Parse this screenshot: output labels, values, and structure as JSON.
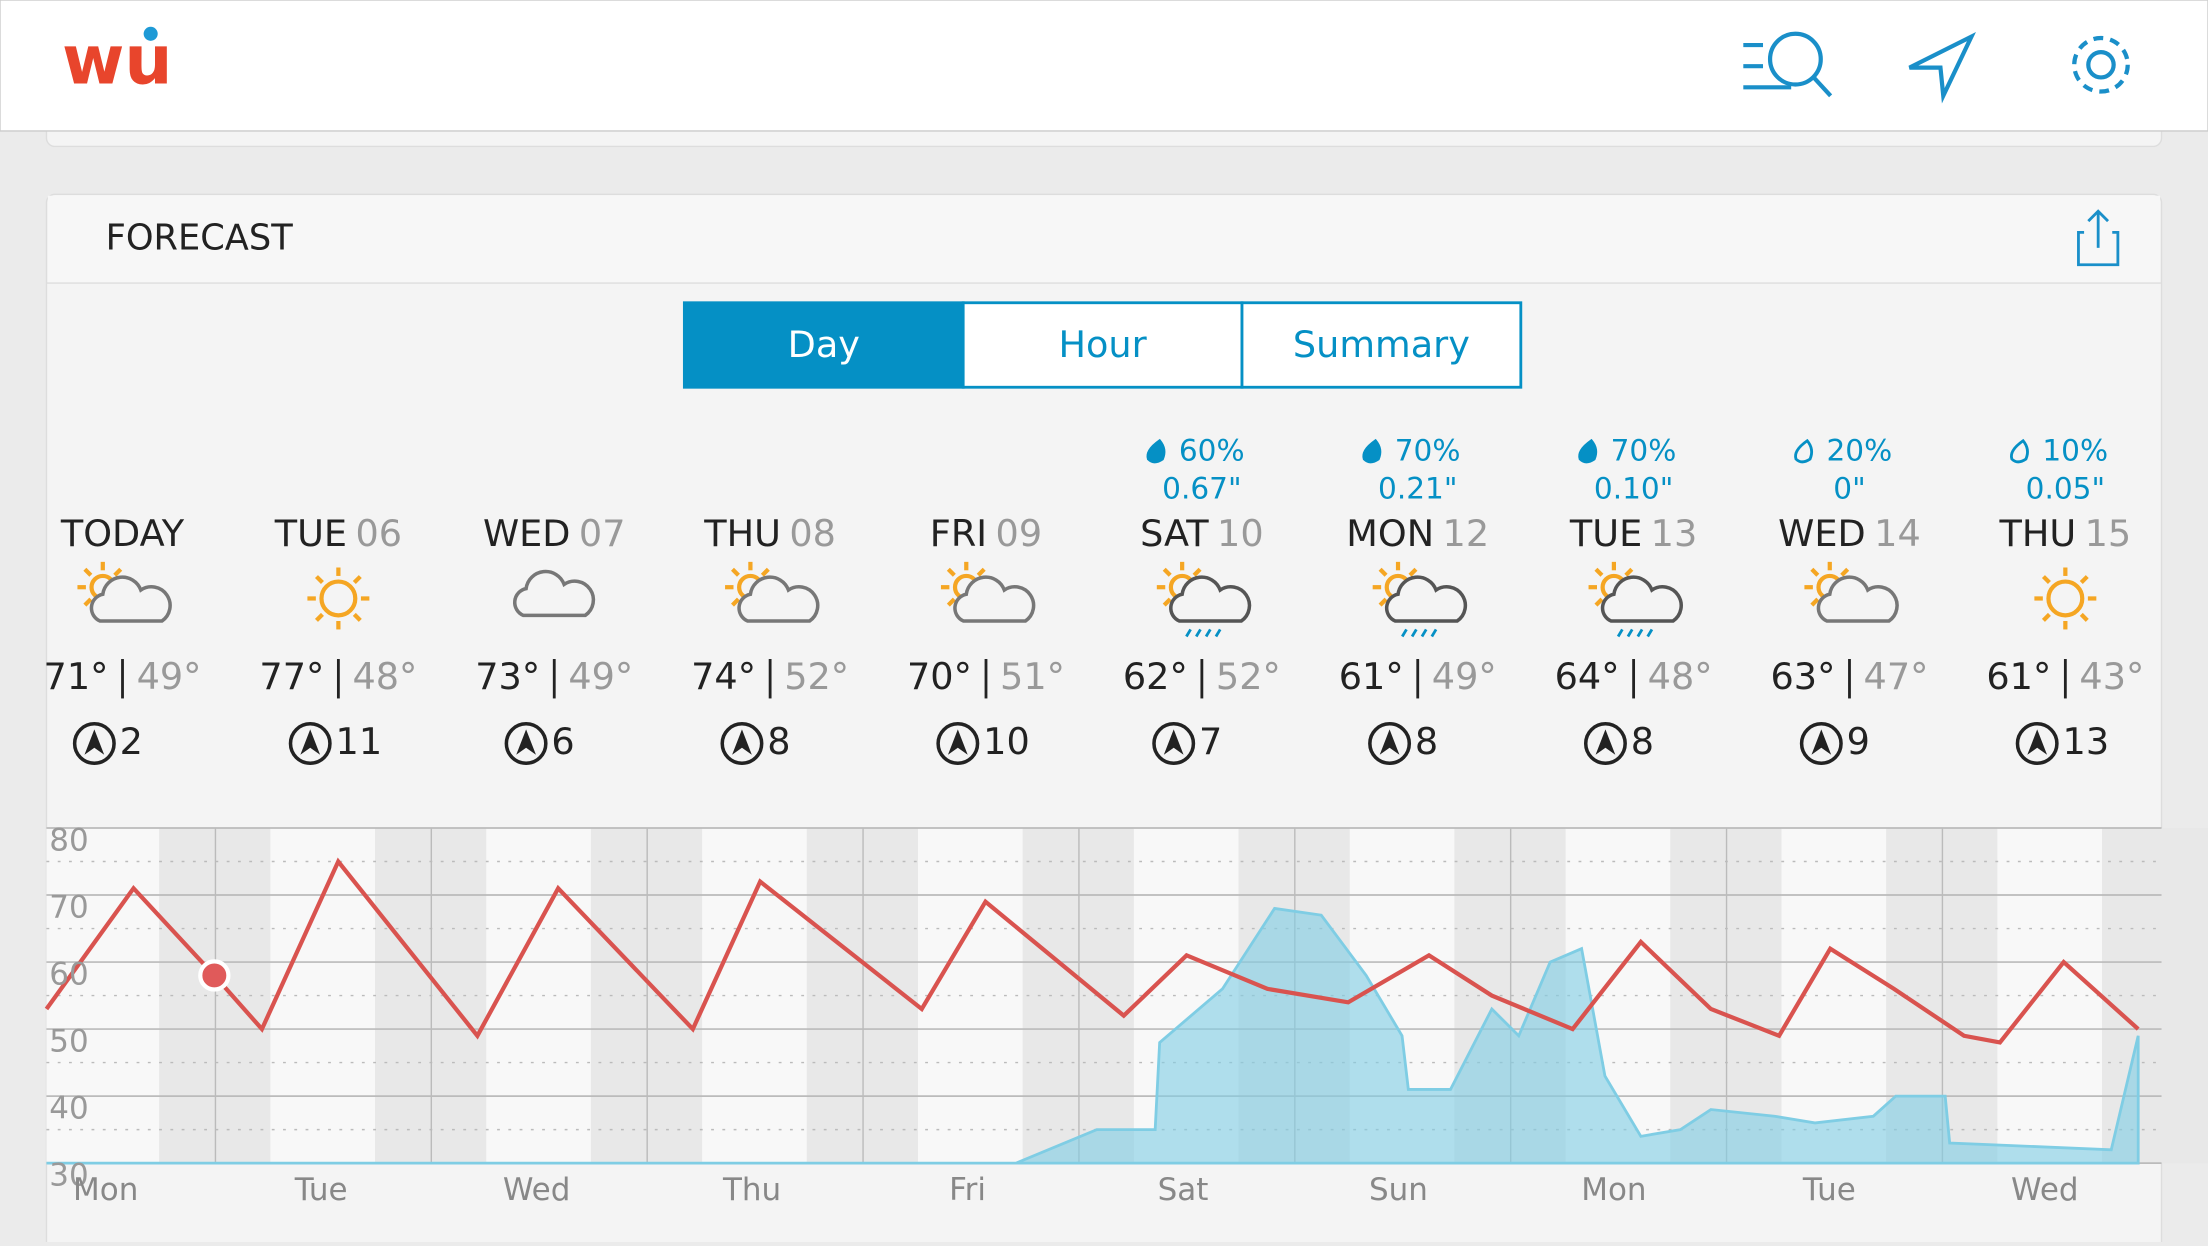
{
  "header": {
    "logo": "wu"
  },
  "forecast": {
    "title": "FORECAST",
    "tabs": [
      "Day",
      "Hour",
      "Summary"
    ],
    "active_tab": 0,
    "days": [
      {
        "name": "TODAY",
        "date": null,
        "icon": "partly",
        "high": "71°",
        "low": "49°",
        "wind": "2"
      },
      {
        "name": "TUE",
        "date": "06",
        "icon": "sun",
        "high": "77°",
        "low": "48°",
        "wind": "11"
      },
      {
        "name": "WED",
        "date": "07",
        "icon": "cloud",
        "high": "73°",
        "low": "49°",
        "wind": "6"
      },
      {
        "name": "THU",
        "date": "08",
        "icon": "partly",
        "high": "74°",
        "low": "52°",
        "wind": "8"
      },
      {
        "name": "FRI",
        "date": "09",
        "icon": "partly",
        "high": "70°",
        "low": "51°",
        "wind": "10"
      },
      {
        "name": "SAT",
        "date": "10",
        "icon": "rain",
        "chance": "60%",
        "amount": "0.67\"",
        "high": "62°",
        "low": "52°",
        "wind": "7"
      },
      {
        "name": "MON",
        "date": "12",
        "icon": "rain",
        "chance": "70%",
        "amount": "0.21\"",
        "high": "61°",
        "low": "49°",
        "wind": "8"
      },
      {
        "name": "TUE",
        "date": "13",
        "icon": "rain",
        "chance": "70%",
        "amount": "0.10\"",
        "high": "64°",
        "low": "48°",
        "wind": "8"
      },
      {
        "name": "WED",
        "date": "14",
        "icon": "partly",
        "chance": "20%",
        "amount": "0\"",
        "high": "63°",
        "low": "47°",
        "wind": "9"
      },
      {
        "name": "THU",
        "date": "15",
        "icon": "sun",
        "chance": "10%",
        "amount": "0.05\"",
        "high": "61°",
        "low": "43°",
        "wind": "13"
      }
    ]
  },
  "chart_data": {
    "type": "line",
    "ylim": [
      30,
      80
    ],
    "yticks": [
      30,
      40,
      50,
      60,
      70,
      80
    ],
    "xlim": [
      0,
      235.6
    ],
    "xticks": [
      {
        "value": 6.6,
        "label": "Mon"
      },
      {
        "value": 30.6,
        "label": "Tue"
      },
      {
        "value": 54.6,
        "label": "Wed"
      },
      {
        "value": 78.6,
        "label": "Thu"
      },
      {
        "value": 102.6,
        "label": "Fri"
      },
      {
        "value": 126.6,
        "label": "Sat"
      },
      {
        "value": 150.6,
        "label": "Sun"
      },
      {
        "value": 174.6,
        "label": "Mon"
      },
      {
        "value": 198.6,
        "label": "Tue"
      },
      {
        "value": 222.6,
        "label": "Wed"
      }
    ],
    "series": [
      {
        "color": "#7fcde4",
        "fill": true,
        "x": [
          0,
          108,
          117,
          123.5,
          124,
          131,
          136.8,
          142,
          147,
          151,
          151.7,
          156.4,
          161,
          164,
          167.5,
          171,
          173.6,
          177.6,
          182,
          185.4,
          192.5,
          197,
          203.5,
          206,
          211.5,
          212,
          230,
          233
        ],
        "values": [
          30,
          30,
          35,
          35,
          48,
          56,
          68,
          67,
          58,
          49,
          41,
          41,
          53,
          49,
          60,
          62,
          43,
          34,
          35,
          38,
          37,
          36,
          37,
          40,
          40,
          33,
          32,
          49
        ]
      },
      {
        "color": "#d9534f",
        "fill": false,
        "x": [
          0,
          9.7,
          18.7,
          24,
          32.5,
          48,
          57,
          72,
          79.5,
          97.5,
          104.6,
          120,
          127,
          136,
          145,
          154,
          161,
          170,
          177.6,
          185.4,
          193,
          198.7,
          205.8,
          213.6,
          217.6,
          224.7,
          233
        ],
        "values": [
          53,
          71,
          58,
          50,
          75,
          49,
          71,
          50,
          72,
          53,
          69,
          52,
          61,
          56,
          54,
          61,
          55,
          50,
          63,
          53,
          49,
          62,
          56,
          49,
          48,
          60,
          50
        ]
      }
    ],
    "current": {
      "x": 18.7,
      "value": 58,
      "color": "#e05a5a"
    }
  }
}
